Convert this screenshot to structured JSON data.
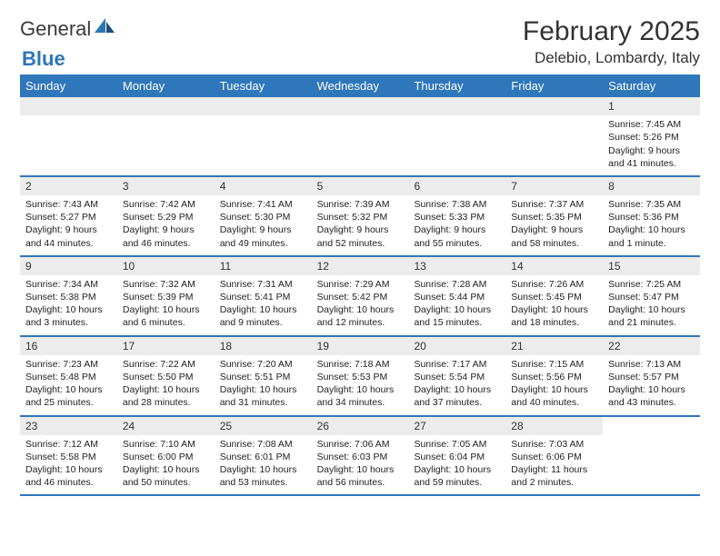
{
  "brand": {
    "general": "General",
    "blue": "Blue"
  },
  "title": "February 2025",
  "location": "Delebio, Lombardy, Italy",
  "colors": {
    "accent": "#2e77bb",
    "strip": "#ececec",
    "text": "#222222",
    "header_text": "#333333"
  },
  "day_headers": [
    "Sunday",
    "Monday",
    "Tuesday",
    "Wednesday",
    "Thursday",
    "Friday",
    "Saturday"
  ],
  "weeks": [
    [
      null,
      null,
      null,
      null,
      null,
      null,
      {
        "n": "1",
        "sr": "Sunrise: 7:45 AM",
        "ss": "Sunset: 5:26 PM",
        "dl": "Daylight: 9 hours and 41 minutes."
      }
    ],
    [
      {
        "n": "2",
        "sr": "Sunrise: 7:43 AM",
        "ss": "Sunset: 5:27 PM",
        "dl": "Daylight: 9 hours and 44 minutes."
      },
      {
        "n": "3",
        "sr": "Sunrise: 7:42 AM",
        "ss": "Sunset: 5:29 PM",
        "dl": "Daylight: 9 hours and 46 minutes."
      },
      {
        "n": "4",
        "sr": "Sunrise: 7:41 AM",
        "ss": "Sunset: 5:30 PM",
        "dl": "Daylight: 9 hours and 49 minutes."
      },
      {
        "n": "5",
        "sr": "Sunrise: 7:39 AM",
        "ss": "Sunset: 5:32 PM",
        "dl": "Daylight: 9 hours and 52 minutes."
      },
      {
        "n": "6",
        "sr": "Sunrise: 7:38 AM",
        "ss": "Sunset: 5:33 PM",
        "dl": "Daylight: 9 hours and 55 minutes."
      },
      {
        "n": "7",
        "sr": "Sunrise: 7:37 AM",
        "ss": "Sunset: 5:35 PM",
        "dl": "Daylight: 9 hours and 58 minutes."
      },
      {
        "n": "8",
        "sr": "Sunrise: 7:35 AM",
        "ss": "Sunset: 5:36 PM",
        "dl": "Daylight: 10 hours and 1 minute."
      }
    ],
    [
      {
        "n": "9",
        "sr": "Sunrise: 7:34 AM",
        "ss": "Sunset: 5:38 PM",
        "dl": "Daylight: 10 hours and 3 minutes."
      },
      {
        "n": "10",
        "sr": "Sunrise: 7:32 AM",
        "ss": "Sunset: 5:39 PM",
        "dl": "Daylight: 10 hours and 6 minutes."
      },
      {
        "n": "11",
        "sr": "Sunrise: 7:31 AM",
        "ss": "Sunset: 5:41 PM",
        "dl": "Daylight: 10 hours and 9 minutes."
      },
      {
        "n": "12",
        "sr": "Sunrise: 7:29 AM",
        "ss": "Sunset: 5:42 PM",
        "dl": "Daylight: 10 hours and 12 minutes."
      },
      {
        "n": "13",
        "sr": "Sunrise: 7:28 AM",
        "ss": "Sunset: 5:44 PM",
        "dl": "Daylight: 10 hours and 15 minutes."
      },
      {
        "n": "14",
        "sr": "Sunrise: 7:26 AM",
        "ss": "Sunset: 5:45 PM",
        "dl": "Daylight: 10 hours and 18 minutes."
      },
      {
        "n": "15",
        "sr": "Sunrise: 7:25 AM",
        "ss": "Sunset: 5:47 PM",
        "dl": "Daylight: 10 hours and 21 minutes."
      }
    ],
    [
      {
        "n": "16",
        "sr": "Sunrise: 7:23 AM",
        "ss": "Sunset: 5:48 PM",
        "dl": "Daylight: 10 hours and 25 minutes."
      },
      {
        "n": "17",
        "sr": "Sunrise: 7:22 AM",
        "ss": "Sunset: 5:50 PM",
        "dl": "Daylight: 10 hours and 28 minutes."
      },
      {
        "n": "18",
        "sr": "Sunrise: 7:20 AM",
        "ss": "Sunset: 5:51 PM",
        "dl": "Daylight: 10 hours and 31 minutes."
      },
      {
        "n": "19",
        "sr": "Sunrise: 7:18 AM",
        "ss": "Sunset: 5:53 PM",
        "dl": "Daylight: 10 hours and 34 minutes."
      },
      {
        "n": "20",
        "sr": "Sunrise: 7:17 AM",
        "ss": "Sunset: 5:54 PM",
        "dl": "Daylight: 10 hours and 37 minutes."
      },
      {
        "n": "21",
        "sr": "Sunrise: 7:15 AM",
        "ss": "Sunset: 5:56 PM",
        "dl": "Daylight: 10 hours and 40 minutes."
      },
      {
        "n": "22",
        "sr": "Sunrise: 7:13 AM",
        "ss": "Sunset: 5:57 PM",
        "dl": "Daylight: 10 hours and 43 minutes."
      }
    ],
    [
      {
        "n": "23",
        "sr": "Sunrise: 7:12 AM",
        "ss": "Sunset: 5:58 PM",
        "dl": "Daylight: 10 hours and 46 minutes."
      },
      {
        "n": "24",
        "sr": "Sunrise: 7:10 AM",
        "ss": "Sunset: 6:00 PM",
        "dl": "Daylight: 10 hours and 50 minutes."
      },
      {
        "n": "25",
        "sr": "Sunrise: 7:08 AM",
        "ss": "Sunset: 6:01 PM",
        "dl": "Daylight: 10 hours and 53 minutes."
      },
      {
        "n": "26",
        "sr": "Sunrise: 7:06 AM",
        "ss": "Sunset: 6:03 PM",
        "dl": "Daylight: 10 hours and 56 minutes."
      },
      {
        "n": "27",
        "sr": "Sunrise: 7:05 AM",
        "ss": "Sunset: 6:04 PM",
        "dl": "Daylight: 10 hours and 59 minutes."
      },
      {
        "n": "28",
        "sr": "Sunrise: 7:03 AM",
        "ss": "Sunset: 6:06 PM",
        "dl": "Daylight: 11 hours and 2 minutes."
      },
      null
    ]
  ]
}
